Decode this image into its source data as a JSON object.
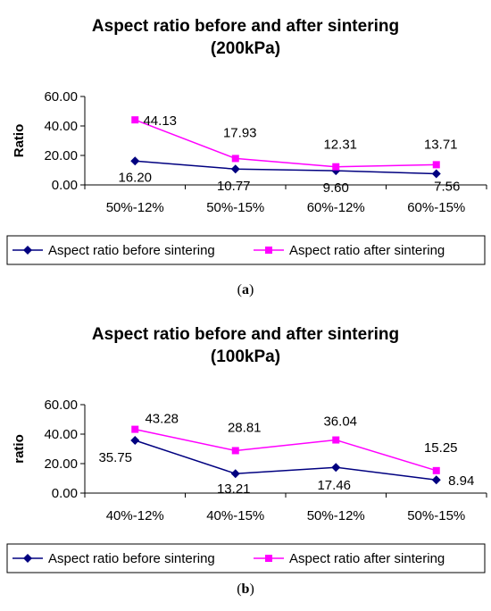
{
  "chart_data": [
    {
      "type": "line",
      "title_line1": "Aspect ratio before and after sintering",
      "title_line2": "(200kPa)",
      "ylabel": "Ratio",
      "ylim": [
        0,
        60
      ],
      "yticks": [
        "0.00",
        "20.00",
        "40.00",
        "60.00"
      ],
      "categories": [
        "50%-12%",
        "50%-15%",
        "60%-12%",
        "60%-15%"
      ],
      "legend_position": "bottom",
      "series": [
        {
          "name": "Aspect ratio before sintering",
          "values": [
            16.2,
            10.77,
            9.6,
            7.56
          ],
          "labels": [
            "16.20",
            "10.77",
            "9.60",
            "7.56"
          ],
          "color": "#000080",
          "marker": "diamond"
        },
        {
          "name": "Aspect ratio after sintering",
          "values": [
            44.13,
            17.93,
            12.31,
            13.71
          ],
          "labels": [
            "44.13",
            "17.93",
            "12.31",
            "13.71"
          ],
          "color": "#FF00FF",
          "marker": "square"
        }
      ],
      "caption": "(a)"
    },
    {
      "type": "line",
      "title_line1": "Aspect ratio before and after sintering",
      "title_line2": "(100kPa)",
      "ylabel": "ratio",
      "ylim": [
        0,
        60
      ],
      "yticks": [
        "0.00",
        "20.00",
        "40.00",
        "60.00"
      ],
      "categories": [
        "40%-12%",
        "40%-15%",
        "50%-12%",
        "50%-15%"
      ],
      "legend_position": "bottom",
      "series": [
        {
          "name": "Aspect ratio before sintering",
          "values": [
            35.75,
            13.21,
            17.46,
            8.94
          ],
          "labels": [
            "35.75",
            "13.21",
            "17.46",
            "8.94"
          ],
          "color": "#000080",
          "marker": "diamond"
        },
        {
          "name": "Aspect ratio after sintering",
          "values": [
            43.28,
            28.81,
            36.04,
            15.25
          ],
          "labels": [
            "43.28",
            "28.81",
            "36.04",
            "15.25"
          ],
          "color": "#FF00FF",
          "marker": "square"
        }
      ],
      "caption": "(b)"
    }
  ]
}
